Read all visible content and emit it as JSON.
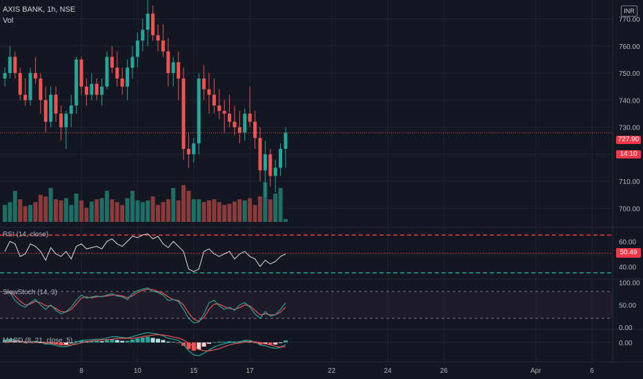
{
  "header": {
    "symbol": "AXIS BANK, 1h, NSE",
    "volume_label": "Vol",
    "currency": "INR"
  },
  "last_price": {
    "value": "727.90",
    "countdown": "14:10"
  },
  "colors": {
    "up": "#26a69a",
    "down": "#ef5350",
    "bg": "#131722",
    "grid": "#1f2433",
    "text": "#b2b5be",
    "rsi": "#e0e0e0",
    "k": "#26a69a",
    "d": "#ef5350"
  },
  "chart_data": [
    {
      "type": "candlestick",
      "title": "AXIS BANK, 1h, NSE",
      "price_range": [
        695,
        777
      ],
      "price_ticks": [
        "700.00",
        "710.00",
        "720.00",
        "730.00",
        "740.00",
        "750.00",
        "760.00",
        "770.00"
      ],
      "x_ticks": [
        {
          "label": "8",
          "bar": 15
        },
        {
          "label": "10",
          "bar": 26
        },
        {
          "label": "15",
          "bar": 37
        },
        {
          "label": "17",
          "bar": 48
        },
        {
          "label": "22",
          "bar": 64
        },
        {
          "label": "24",
          "bar": 75
        },
        {
          "label": "26",
          "bar": 86
        },
        {
          "label": "Apr",
          "bar": 104
        },
        {
          "label": "6",
          "bar": 115
        }
      ],
      "ohlc": [
        [
          748,
          752,
          745,
          750
        ],
        [
          750,
          760,
          748,
          756
        ],
        [
          756,
          758,
          748,
          750
        ],
        [
          750,
          752,
          740,
          742
        ],
        [
          742,
          748,
          738,
          740
        ],
        [
          740,
          752,
          738,
          750
        ],
        [
          750,
          756,
          746,
          748
        ],
        [
          748,
          750,
          735,
          740
        ],
        [
          740,
          745,
          728,
          732
        ],
        [
          732,
          745,
          730,
          742
        ],
        [
          742,
          745,
          732,
          735
        ],
        [
          735,
          738,
          725,
          730
        ],
        [
          730,
          736,
          722,
          735
        ],
        [
          735,
          742,
          730,
          738
        ],
        [
          738,
          756,
          735,
          755
        ],
        [
          755,
          756,
          742,
          745
        ],
        [
          745,
          748,
          738,
          742
        ],
        [
          742,
          750,
          740,
          746
        ],
        [
          746,
          748,
          740,
          742
        ],
        [
          742,
          748,
          738,
          745
        ],
        [
          745,
          758,
          744,
          756
        ],
        [
          756,
          760,
          750,
          752
        ],
        [
          752,
          758,
          745,
          748
        ],
        [
          748,
          752,
          742,
          745
        ],
        [
          745,
          755,
          740,
          752
        ],
        [
          752,
          760,
          748,
          756
        ],
        [
          756,
          765,
          752,
          762
        ],
        [
          762,
          770,
          758,
          766
        ],
        [
          766,
          778,
          760,
          772
        ],
        [
          772,
          775,
          762,
          764
        ],
        [
          764,
          768,
          758,
          762
        ],
        [
          762,
          768,
          756,
          758
        ],
        [
          758,
          763,
          745,
          750
        ],
        [
          750,
          756,
          745,
          754
        ],
        [
          754,
          758,
          740,
          748
        ],
        [
          748,
          752,
          718,
          722
        ],
        [
          722,
          728,
          715,
          720
        ],
        [
          720,
          726,
          717,
          724
        ],
        [
          724,
          750,
          720,
          748
        ],
        [
          748,
          753,
          740,
          744
        ],
        [
          744,
          750,
          735,
          742
        ],
        [
          742,
          748,
          735,
          738
        ],
        [
          738,
          744,
          733,
          736
        ],
        [
          736,
          740,
          728,
          735
        ],
        [
          735,
          742,
          730,
          732
        ],
        [
          732,
          738,
          727,
          730
        ],
        [
          730,
          736,
          724,
          728
        ],
        [
          728,
          737,
          725,
          735
        ],
        [
          735,
          745,
          730,
          732
        ],
        [
          732,
          736,
          722,
          726
        ],
        [
          726,
          730,
          710,
          714
        ],
        [
          714,
          725,
          704,
          720
        ],
        [
          720,
          722,
          708,
          712
        ],
        [
          712,
          718,
          706,
          715
        ],
        [
          715,
          724,
          712,
          722
        ],
        [
          722,
          730,
          715,
          728
        ]
      ],
      "volume_max": 100,
      "volume": [
        30,
        35,
        55,
        40,
        28,
        30,
        35,
        48,
        45,
        60,
        40,
        38,
        42,
        30,
        50,
        38,
        25,
        36,
        40,
        42,
        55,
        40,
        35,
        30,
        42,
        55,
        38,
        35,
        38,
        45,
        30,
        35,
        40,
        60,
        38,
        65,
        55,
        40,
        40,
        35,
        38,
        40,
        35,
        30,
        32,
        36,
        40,
        38,
        42,
        30,
        45,
        70,
        40,
        50,
        60,
        5
      ],
      "volume_dir": [
        "up",
        "up",
        "up",
        "down",
        "down",
        "up",
        "down",
        "down",
        "down",
        "up",
        "down",
        "down",
        "up",
        "up",
        "up",
        "down",
        "down",
        "up",
        "down",
        "up",
        "up",
        "down",
        "down",
        "down",
        "up",
        "up",
        "up",
        "up",
        "up",
        "down",
        "down",
        "down",
        "down",
        "up",
        "down",
        "down",
        "down",
        "up",
        "up",
        "down",
        "down",
        "down",
        "down",
        "down",
        "down",
        "down",
        "down",
        "up",
        "down",
        "down",
        "down",
        "up",
        "down",
        "up",
        "up",
        "up"
      ]
    },
    {
      "type": "line",
      "title": "RSI (14, close)",
      "ylim": [
        30,
        70
      ],
      "y_ticks": [
        "60.00",
        "40.00"
      ],
      "bands": [
        65,
        35
      ],
      "last_value": "50.49",
      "values": [
        52,
        60,
        58,
        48,
        50,
        58,
        56,
        52,
        45,
        55,
        50,
        48,
        52,
        46,
        56,
        58,
        54,
        55,
        56,
        54,
        60,
        62,
        58,
        56,
        60,
        64,
        63,
        65,
        66,
        62,
        64,
        58,
        55,
        60,
        56,
        52,
        38,
        36,
        38,
        52,
        54,
        50,
        48,
        50,
        52,
        46,
        50,
        52,
        48,
        46,
        40,
        45,
        42,
        44,
        48,
        50
      ]
    },
    {
      "type": "line",
      "title": "SlowStoch (14, 3)",
      "ylim": [
        0,
        100
      ],
      "y_ticks": [
        "100.00",
        "50.00",
        "0.00"
      ],
      "bands": [
        80,
        20
      ],
      "series": [
        {
          "values": [
            80,
            78,
            60,
            50,
            45,
            55,
            62,
            50,
            40,
            50,
            38,
            30,
            35,
            45,
            60,
            72,
            65,
            68,
            70,
            68,
            72,
            75,
            70,
            68,
            62,
            75,
            82,
            85,
            88,
            80,
            78,
            72,
            60,
            62,
            58,
            40,
            20,
            10,
            12,
            30,
            55,
            60,
            48,
            40,
            45,
            38,
            50,
            55,
            45,
            30,
            20,
            35,
            25,
            28,
            40,
            55
          ]
        },
        {
          "values": [
            78,
            80,
            70,
            58,
            50,
            52,
            58,
            55,
            48,
            48,
            42,
            35,
            34,
            40,
            52,
            65,
            68,
            66,
            68,
            69,
            70,
            72,
            72,
            70,
            66,
            70,
            78,
            82,
            85,
            84,
            80,
            76,
            68,
            62,
            60,
            50,
            32,
            18,
            14,
            22,
            40,
            52,
            52,
            46,
            42,
            40,
            44,
            50,
            48,
            38,
            28,
            30,
            28,
            28,
            34,
            45
          ]
        }
      ]
    },
    {
      "type": "bar",
      "title": "MACD (8, 21, close, 5)",
      "y_ticks": [
        "0.00"
      ],
      "histogram": [
        0.6,
        0.8,
        0.5,
        0.2,
        -0.1,
        0.2,
        0.3,
        0.0,
        -0.4,
        -0.2,
        -0.5,
        -0.7,
        -0.5,
        -0.2,
        0.3,
        0.5,
        0.3,
        0.3,
        0.4,
        0.3,
        0.6,
        0.8,
        0.6,
        0.4,
        0.4,
        0.7,
        1.0,
        1.2,
        1.4,
        1.1,
        0.9,
        0.6,
        0.2,
        0.2,
        -0.1,
        -0.8,
        -1.6,
        -2.0,
        -1.7,
        -1.0,
        -0.3,
        0.1,
        0.2,
        0.2,
        0.3,
        0.2,
        0.3,
        0.4,
        0.3,
        -0.1,
        -0.5,
        -0.4,
        -0.6,
        -0.5,
        -0.1,
        0.5
      ],
      "series": [
        {
          "values": [
            0.5,
            0.8,
            0.7,
            0.4,
            0.0,
            0.1,
            0.3,
            0.1,
            -0.4,
            -0.4,
            -0.7,
            -1.0,
            -1.0,
            -0.7,
            0.0,
            0.5,
            0.6,
            0.7,
            0.8,
            0.8,
            1.1,
            1.4,
            1.4,
            1.2,
            1.1,
            1.4,
            1.8,
            2.1,
            2.4,
            2.2,
            2.0,
            1.6,
            1.0,
            0.8,
            0.5,
            -0.5,
            -2.0,
            -3.0,
            -3.2,
            -2.6,
            -1.8,
            -1.1,
            -0.6,
            -0.3,
            0.0,
            0.0,
            0.2,
            0.5,
            0.5,
            0.1,
            -0.6,
            -0.8,
            -1.2,
            -1.4,
            -1.2,
            -0.5
          ]
        },
        {
          "values": [
            0.0,
            0.1,
            0.3,
            0.3,
            0.2,
            0.0,
            0.0,
            0.1,
            0.0,
            -0.2,
            -0.3,
            -0.5,
            -0.6,
            -0.6,
            -0.4,
            -0.1,
            0.2,
            0.4,
            0.5,
            0.6,
            0.7,
            0.8,
            1.0,
            1.0,
            1.0,
            1.0,
            1.2,
            1.4,
            1.6,
            1.8,
            1.9,
            1.8,
            1.6,
            1.3,
            1.1,
            0.6,
            -0.2,
            -1.0,
            -1.7,
            -2.0,
            -2.0,
            -1.8,
            -1.5,
            -1.0,
            -0.6,
            -0.3,
            -0.1,
            0.1,
            0.2,
            0.2,
            0.0,
            -0.3,
            -0.6,
            -0.9,
            -1.1,
            -1.0
          ]
        }
      ]
    }
  ]
}
